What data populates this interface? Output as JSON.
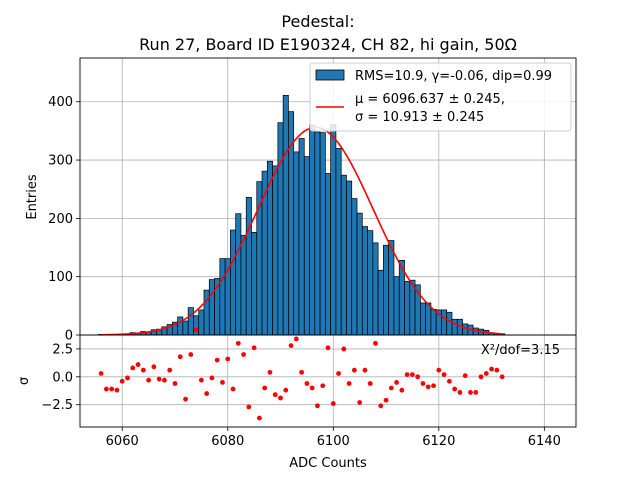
{
  "chart_data": [
    {
      "type": "bar",
      "title": "Pedestal:",
      "subtitle": "Run 27, Board ID E190324, CH 82, hi gain, 50Ω",
      "xlabel": "",
      "ylabel": "Entries",
      "xlim": [
        6052,
        6146
      ],
      "ylim": [
        0,
        475
      ],
      "yticks": [
        "0",
        "100",
        "200",
        "300",
        "400"
      ],
      "grid": true,
      "legend_placement": "top-right",
      "bar_color": "#1f77b4",
      "fit_color": "#ff0000",
      "bin_width": 1,
      "histogram": {
        "name": "RMS=10.9, γ=-0.06, dip=0.99",
        "x": [
          6056,
          6057,
          6058,
          6059,
          6060,
          6061,
          6062,
          6063,
          6064,
          6065,
          6066,
          6067,
          6068,
          6069,
          6070,
          6071,
          6072,
          6073,
          6074,
          6075,
          6076,
          6077,
          6078,
          6079,
          6080,
          6081,
          6082,
          6083,
          6084,
          6085,
          6086,
          6087,
          6088,
          6089,
          6090,
          6091,
          6092,
          6093,
          6094,
          6095,
          6096,
          6097,
          6098,
          6099,
          6100,
          6101,
          6102,
          6103,
          6104,
          6105,
          6106,
          6107,
          6108,
          6109,
          6110,
          6111,
          6112,
          6113,
          6114,
          6115,
          6116,
          6117,
          6118,
          6119,
          6120,
          6121,
          6122,
          6123,
          6124,
          6125,
          6126,
          6127,
          6128,
          6129,
          6130,
          6131,
          6132
        ],
        "values": [
          1,
          1,
          1,
          1,
          2,
          2,
          4,
          3,
          6,
          5,
          9,
          10,
          14,
          18,
          22,
          31,
          24,
          47,
          33,
          43,
          77,
          95,
          97,
          131,
          131,
          180,
          208,
          171,
          236,
          176,
          263,
          281,
          298,
          290,
          364,
          411,
          383,
          314,
          337,
          306,
          360,
          348,
          347,
          277,
          361,
          320,
          274,
          264,
          234,
          209,
          186,
          179,
          158,
          111,
          154,
          162,
          100,
          128,
          92,
          94,
          86,
          55,
          55,
          44,
          43,
          43,
          39,
          27,
          27,
          19,
          17,
          12,
          10,
          8,
          4,
          3,
          2
        ]
      },
      "fit": {
        "name_line1": "μ = 6096.637 ± 0.245,",
        "name_line2": "σ = 10.913 ± 0.245",
        "mu": 6096.637,
        "sigma": 10.913,
        "amplitude": 356,
        "x_range": [
          6056,
          6132
        ]
      }
    },
    {
      "type": "scatter",
      "xlabel": "ADC Counts",
      "ylabel": "σ",
      "xlim": [
        6052,
        6146
      ],
      "ylim": [
        -4.5,
        3.75
      ],
      "xticks": [
        "6060",
        "6080",
        "6100",
        "6120",
        "6140"
      ],
      "xtick_values": [
        6060,
        6080,
        6100,
        6120,
        6140
      ],
      "yticks": [
        "2.5",
        "0.0",
        "−2.5"
      ],
      "ytick_values": [
        2.5,
        0,
        -2.5
      ],
      "grid": true,
      "annotation": "X²/dof=3.15",
      "color": "#ff0000",
      "x": [
        6056,
        6057,
        6058,
        6059,
        6060,
        6061,
        6062,
        6063,
        6064,
        6065,
        6066,
        6067,
        6068,
        6069,
        6070,
        6071,
        6072,
        6073,
        6074,
        6075,
        6076,
        6077,
        6078,
        6079,
        6080,
        6081,
        6082,
        6083,
        6084,
        6085,
        6086,
        6087,
        6088,
        6089,
        6090,
        6091,
        6092,
        6093,
        6094,
        6095,
        6096,
        6097,
        6098,
        6099,
        6100,
        6101,
        6102,
        6103,
        6104,
        6105,
        6106,
        6107,
        6108,
        6109,
        6110,
        6111,
        6112,
        6113,
        6114,
        6115,
        6116,
        6117,
        6118,
        6119,
        6120,
        6121,
        6122,
        6123,
        6124,
        6125,
        6126,
        6127,
        6128,
        6129,
        6130,
        6131,
        6132
      ],
      "y": [
        0.3,
        -1.1,
        -1.1,
        -1.2,
        -0.4,
        -0.1,
        0.8,
        1.1,
        0.6,
        -0.3,
        0.9,
        -0.2,
        -0.3,
        0.6,
        -0.6,
        1.8,
        -2.0,
        2.0,
        4.2,
        -0.3,
        -1.5,
        -0.1,
        1.5,
        -0.5,
        1.6,
        -1.1,
        3.0,
        2.0,
        -2.7,
        2.6,
        -3.7,
        -1.0,
        0.4,
        -1.6,
        -1.9,
        -1.2,
        2.8,
        3.4,
        0.4,
        -0.6,
        -1.0,
        -2.6,
        -0.8,
        2.6,
        -2.4,
        0.3,
        2.5,
        -0.6,
        0.6,
        -2.3,
        0.6,
        -0.6,
        3.0,
        -2.6,
        -2.1,
        -1.0,
        -0.5,
        -1.2,
        0.2,
        0.2,
        0.0,
        -0.6,
        -0.9,
        -0.8,
        0.6,
        0.2,
        -0.4,
        -1.1,
        -1.4,
        0.1,
        -1.4,
        -1.4,
        0.0,
        0.3,
        0.7,
        0.6,
        0.0
      ]
    }
  ]
}
